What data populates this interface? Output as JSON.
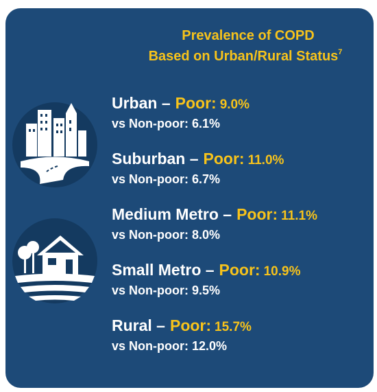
{
  "title": {
    "line1": "Prevalence of COPD",
    "line2": "Based on Urban/Rural Status",
    "footnote": "7"
  },
  "items": [
    {
      "area": "Urban –",
      "poor_label": "Poor:",
      "poor_value": "9.0%",
      "nonpoor": "vs Non-poor: 6.1%"
    },
    {
      "area": "Suburban –",
      "poor_label": "Poor:",
      "poor_value": "11.0%",
      "nonpoor": "vs Non-poor: 6.7%"
    },
    {
      "area": "Medium Metro –",
      "poor_label": "Poor:",
      "poor_value": "11.1%",
      "nonpoor": "vs Non-poor: 8.0%"
    },
    {
      "area": "Small Metro –",
      "poor_label": "Poor:",
      "poor_value": "10.9%",
      "nonpoor": "vs Non-poor: 9.5%"
    },
    {
      "area": "Rural –",
      "poor_label": "Poor:",
      "poor_value": "15.7%",
      "nonpoor": "vs Non-poor: 12.0%"
    }
  ]
}
